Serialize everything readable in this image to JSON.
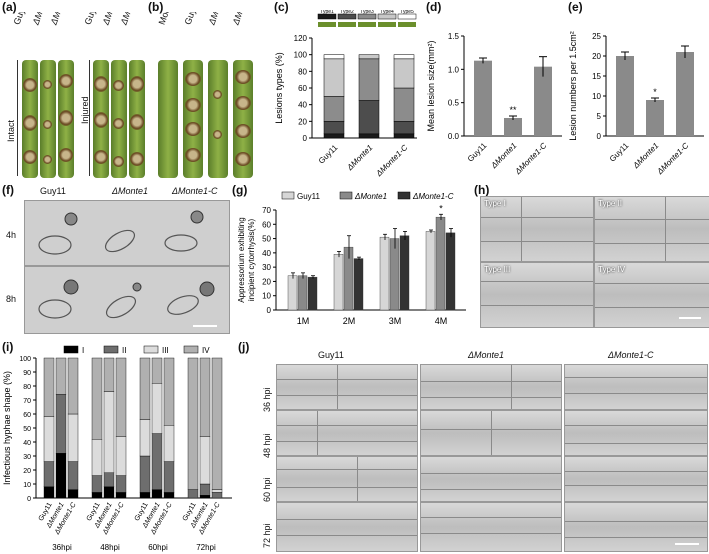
{
  "labels": {
    "a": "(a)",
    "b": "(b)",
    "c": "(c)",
    "d": "(d)",
    "e": "(e)",
    "f": "(f)",
    "g": "(g)",
    "h": "(h)",
    "i": "(i)",
    "j": "(j)"
  },
  "strains": [
    "Guy11",
    "ΔMonte1",
    "ΔMonte1-C"
  ],
  "panel_a": {
    "intact": "Intact",
    "injured": "Injured"
  },
  "panel_b": {
    "cols": [
      "Mock",
      "Guy11",
      "ΔMonte1",
      "ΔMonte1-C"
    ]
  },
  "panel_f": {
    "rows": [
      "4h",
      "8h"
    ]
  },
  "panel_h": {
    "types": [
      "Type I",
      "Type II",
      "Type III",
      "Type IV"
    ]
  },
  "panel_j": {
    "rows": [
      "36 hpi",
      "48 hpi",
      "60 hpi",
      "72 hpi"
    ]
  },
  "colors": {
    "type1": "#1a1a1a",
    "type2": "#4d4d4d",
    "type3": "#8c8c8c",
    "type4": "#c8c8c8",
    "type5": "#ffffff",
    "bar": "#8a8a8a",
    "guy11": "#d6d6d6",
    "monte": "#8a8a8a",
    "montec": "#333333"
  },
  "chart_data": [
    {
      "id": "c",
      "type": "bar",
      "stacked": true,
      "categories": [
        "Guy11",
        "ΔMonte1",
        "ΔMonte1-C"
      ],
      "ylabel": "Lesions types (%)",
      "ylim": [
        0,
        120
      ],
      "yticks": [
        0,
        20,
        40,
        60,
        80,
        100,
        120
      ],
      "series": [
        {
          "name": "Type1",
          "values": [
            5,
            5,
            5
          ]
        },
        {
          "name": "Type2",
          "values": [
            15,
            40,
            15
          ]
        },
        {
          "name": "Type3",
          "values": [
            30,
            50,
            40
          ]
        },
        {
          "name": "Type4",
          "values": [
            45,
            5,
            35
          ]
        },
        {
          "name": "Type5",
          "values": [
            5,
            0,
            5
          ]
        }
      ]
    },
    {
      "id": "d",
      "type": "bar",
      "categories": [
        "Guy11",
        "ΔMonte1",
        "ΔMonte1-C"
      ],
      "values": [
        1.13,
        0.27,
        1.04
      ],
      "errors": [
        0.04,
        0.03,
        0.15
      ],
      "ylabel": "Mean lesion size(mm²)",
      "ylim": [
        0,
        1.5
      ],
      "yticks": [
        0.0,
        0.5,
        1.0,
        1.5
      ],
      "annotations": [
        "",
        "**",
        ""
      ]
    },
    {
      "id": "e",
      "type": "bar",
      "categories": [
        "Guy11",
        "ΔMonte1",
        "ΔMonte1-C"
      ],
      "values": [
        20,
        9,
        21
      ],
      "errors": [
        1.0,
        0.5,
        1.5
      ],
      "ylabel": "Lesion numbers per 1.5cm²",
      "ylim": [
        0,
        25
      ],
      "yticks": [
        0,
        5,
        10,
        15,
        20,
        25
      ],
      "annotations": [
        "",
        "*",
        ""
      ]
    },
    {
      "id": "g",
      "type": "bar",
      "categories": [
        "1M",
        "2M",
        "3M",
        "4M"
      ],
      "ylabel": "Appressorium exhibiting incipient cytorrhysis(%)",
      "ylim": [
        0,
        70
      ],
      "yticks": [
        0,
        10,
        20,
        30,
        40,
        50,
        60,
        70
      ],
      "series": [
        {
          "name": "Guy11",
          "values": [
            24,
            39,
            51,
            55
          ],
          "errors": [
            2,
            2,
            2,
            1
          ]
        },
        {
          "name": "ΔMonte1",
          "values": [
            24,
            44,
            50,
            65
          ],
          "errors": [
            2,
            8,
            7,
            2
          ]
        },
        {
          "name": "ΔMonte1-C",
          "values": [
            23,
            36,
            52,
            54
          ],
          "errors": [
            1,
            1,
            3,
            3
          ]
        }
      ],
      "annotations": [
        "",
        "",
        "",
        "*"
      ]
    },
    {
      "id": "i",
      "type": "bar",
      "stacked": true,
      "groups": [
        "36hpi",
        "48hpi",
        "60hpi",
        "72hpi"
      ],
      "categories": [
        "Guy11",
        "ΔMonte1",
        "ΔMonte1-C"
      ],
      "ylabel": "Infectious hyphae shape (%)",
      "ylim": [
        0,
        100
      ],
      "yticks": [
        0,
        10,
        20,
        30,
        40,
        50,
        60,
        70,
        80,
        90,
        100
      ],
      "legend": [
        "I",
        "II",
        "III",
        "IV"
      ],
      "series": [
        {
          "name": "I",
          "values": [
            [
              8,
              32,
              6
            ],
            [
              4,
              8,
              4
            ],
            [
              4,
              6,
              4
            ],
            [
              0,
              2,
              0
            ]
          ]
        },
        {
          "name": "II",
          "values": [
            [
              18,
              42,
              20
            ],
            [
              12,
              10,
              12
            ],
            [
              26,
              40,
              22
            ],
            [
              6,
              8,
              4
            ]
          ]
        },
        {
          "name": "III",
          "values": [
            [
              32,
              0,
              34
            ],
            [
              26,
              58,
              28
            ],
            [
              26,
              36,
              26
            ],
            [
              0,
              34,
              2
            ]
          ]
        },
        {
          "name": "IV",
          "values": [
            [
              42,
              26,
              40
            ],
            [
              58,
              24,
              56
            ],
            [
              44,
              18,
              48
            ],
            [
              94,
              56,
              94
            ]
          ]
        }
      ]
    }
  ]
}
